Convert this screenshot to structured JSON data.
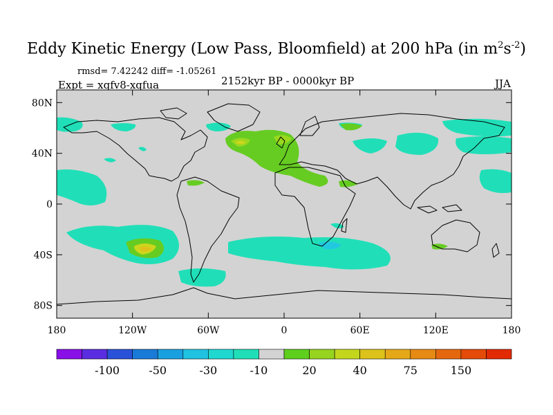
{
  "title": {
    "main": "Eddy Kinetic Energy (Low Pass, Bloomfield) at 200 hPa (in m",
    "sup1": "2",
    "mid": "s",
    "sup2": "-2",
    "end": ")"
  },
  "stats": "rmsd= 7.42242 diff= -1.05261",
  "expt": "Expt = xqfv8-xqfua",
  "period": "2152kyr BP - 0000kyr BP",
  "season": "JJA",
  "colors": {
    "land_bg": "#d3d3d3",
    "teal": "#20dfb8",
    "cyan": "#22c8e0",
    "green": "#66cc22",
    "lightgreen": "#9ad81f",
    "yellow": "#ccd61c",
    "gold": "#dfc11a",
    "coast": "#000000"
  },
  "map": {
    "lat_ticks": [
      {
        "label": "80N",
        "value": 80
      },
      {
        "label": "40N",
        "value": 40
      },
      {
        "label": "0",
        "value": 0
      },
      {
        "label": "40S",
        "value": -40
      },
      {
        "label": "80S",
        "value": -80
      }
    ],
    "lon_ticks": [
      {
        "label": "180",
        "value": -180
      },
      {
        "label": "120W",
        "value": -120
      },
      {
        "label": "60W",
        "value": -60
      },
      {
        "label": "0",
        "value": 0
      },
      {
        "label": "60E",
        "value": 60
      },
      {
        "label": "120E",
        "value": 120
      },
      {
        "label": "180",
        "value": 180
      }
    ]
  },
  "colorbar": {
    "colors": [
      "#8a10e8",
      "#5a2ee0",
      "#2a52d8",
      "#1a7ad8",
      "#1aa0e0",
      "#1fc2e0",
      "#1fd8d0",
      "#20dfb8",
      "#d3d3d3",
      "#5fcf1e",
      "#96d41f",
      "#c4d61c",
      "#dcc21a",
      "#e4a818",
      "#e68a14",
      "#e6680e",
      "#e44a08",
      "#e22a04"
    ],
    "labels": [
      "-100",
      "-50",
      "-30",
      "-10",
      "20",
      "40",
      "75",
      "150"
    ],
    "label_index": [
      2,
      4,
      6,
      8,
      10,
      12,
      14,
      16
    ]
  }
}
